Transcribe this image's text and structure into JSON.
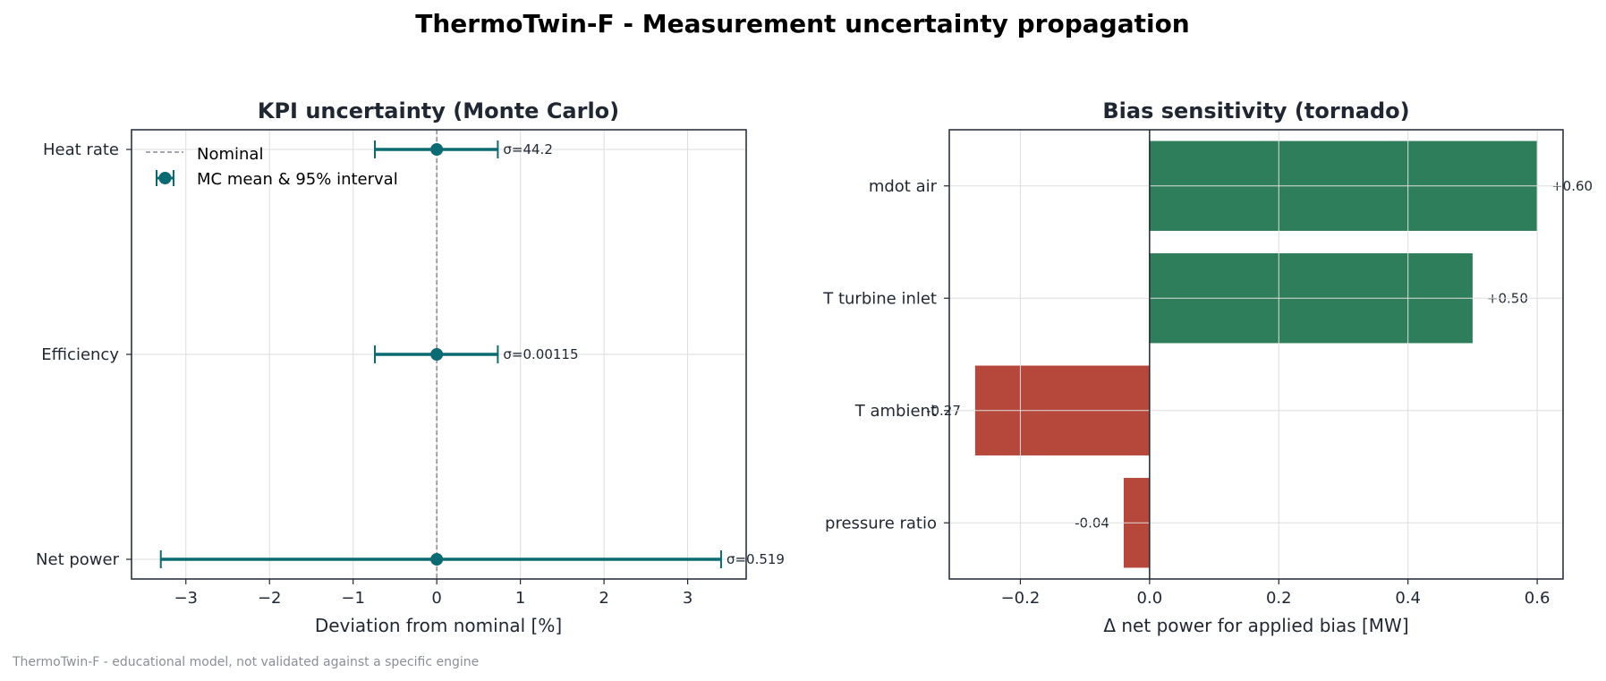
{
  "suptitle": "ThermoTwin-F  -  Measurement uncertainty propagation",
  "footnote": "ThermoTwin-F - educational model, not validated against a specific engine",
  "colors": {
    "teal": "#0b6b73",
    "green": "#2e7d5b",
    "red": "#b5473b",
    "grid": "#dddddd",
    "nominal": "#888899"
  },
  "chart_data": [
    {
      "type": "scatter",
      "title": "KPI uncertainty (Monte Carlo)",
      "xlabel": "Deviation from nominal [%]",
      "ylabel": "",
      "xlim": [
        -3.65,
        3.7
      ],
      "xticks": [
        -3,
        -2,
        -1,
        0,
        1,
        2,
        3
      ],
      "xtick_labels": [
        "−3",
        "−2",
        "−1",
        "0",
        "1",
        "2",
        "3"
      ],
      "grid": true,
      "legend_position": "top-left",
      "legend": [
        "Nominal",
        "MC mean & 95% interval"
      ],
      "categories": [
        "Heat rate",
        "Efficiency",
        "Net power"
      ],
      "mean": [
        0.0,
        0.0,
        0.0
      ],
      "ci_low": [
        -0.74,
        -0.74,
        -3.3
      ],
      "ci_high": [
        0.73,
        0.73,
        3.4
      ],
      "sigma_labels": [
        "σ=44.2",
        "σ=0.00115",
        "σ=0.519"
      ],
      "nominal_x": 0
    },
    {
      "type": "bar",
      "orientation": "horizontal",
      "title": "Bias sensitivity (tornado)",
      "xlabel": "Δ net power for applied bias [MW]",
      "ylabel": "",
      "xlim": [
        -0.31,
        0.64
      ],
      "xticks": [
        -0.2,
        0.0,
        0.2,
        0.4,
        0.6
      ],
      "xtick_labels": [
        "−0.2",
        "0.0",
        "0.2",
        "0.4",
        "0.6"
      ],
      "grid": true,
      "categories": [
        "mdot air",
        "T turbine inlet",
        "T ambient",
        "pressure ratio"
      ],
      "values": [
        0.6,
        0.5,
        -0.27,
        -0.04
      ],
      "value_labels": [
        "+0.60",
        "+0.50",
        "-0.27",
        "-0.04"
      ]
    }
  ]
}
